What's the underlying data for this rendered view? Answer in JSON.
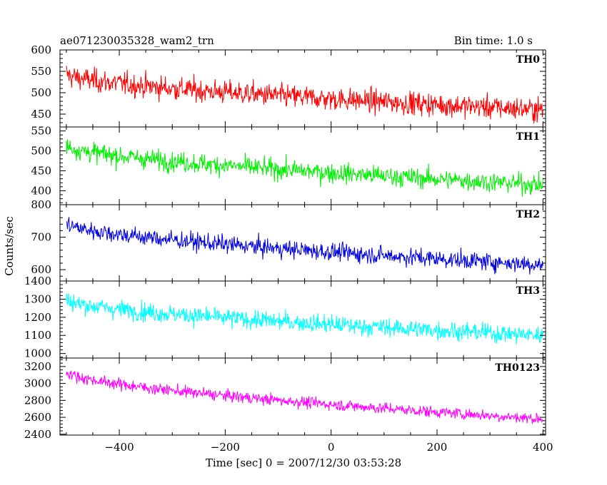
{
  "header": {
    "title": "ae071230035328_wam2_trn",
    "bin_time": "Bin time: 1.0 s"
  },
  "chart_data": {
    "type": "line",
    "xlabel": "Time [sec] 0 = 2007/12/30 03:53:28",
    "ylabel": "Counts/sec",
    "xlim": [
      -512,
      405
    ],
    "x_ticks": [
      -400,
      -200,
      0,
      200,
      400
    ],
    "x_tick_labels": [
      "−400",
      "−200",
      "0",
      "200",
      "400"
    ],
    "x_range": [
      -500,
      400
    ],
    "bin_time": 1.0,
    "panels": [
      {
        "name": "TH0",
        "color": "#ff0000",
        "ylim": [
          420,
          600
        ],
        "y_ticks": [
          450,
          500,
          550,
          600
        ],
        "trend_start": 545,
        "trend_end": 460,
        "noise": 24
      },
      {
        "name": "TH1",
        "color": "#00ee00",
        "ylim": [
          365,
          560
        ],
        "y_ticks": [
          400,
          450,
          500,
          550
        ],
        "trend_start": 515,
        "trend_end": 415,
        "noise": 22
      },
      {
        "name": "TH2",
        "color": "#0000dd",
        "ylim": [
          565,
          800
        ],
        "y_ticks": [
          600,
          700,
          800
        ],
        "trend_start": 745,
        "trend_end": 615,
        "noise": 24
      },
      {
        "name": "TH3",
        "color": "#00ffff",
        "ylim": [
          975,
          1400
        ],
        "y_ticks": [
          1000,
          1100,
          1200,
          1300,
          1400
        ],
        "trend_start": 1300,
        "trend_end": 1100,
        "noise": 45
      },
      {
        "name": "TH0123",
        "color": "#ff00ff",
        "ylim": [
          2390,
          3300
        ],
        "y_ticks": [
          2400,
          2600,
          2800,
          3000,
          3200
        ],
        "trend_start": 3150,
        "trend_end": 2580,
        "noise": 60
      }
    ]
  }
}
